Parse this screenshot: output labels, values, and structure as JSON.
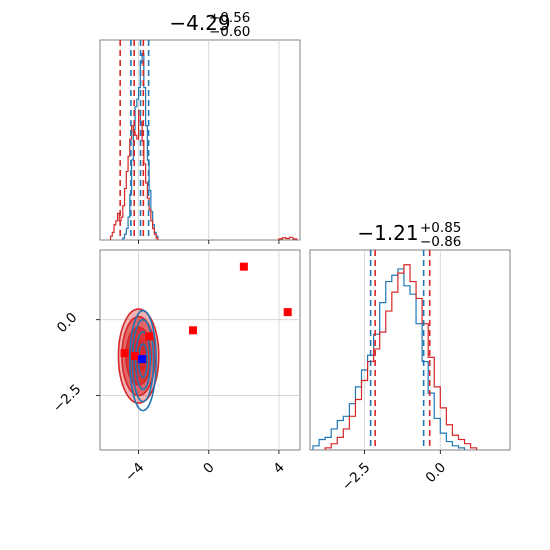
{
  "chart_data": [
    {
      "type": "histogram",
      "panel": "top-left",
      "title": {
        "value": "−4.29",
        "sup": "+0.56",
        "sub": "−0.60"
      },
      "xlim": [
        -6.2,
        5.2
      ],
      "xticks": [
        -4,
        0,
        4
      ],
      "grid": true,
      "quantile_lines": [
        {
          "color": "#d62728",
          "values": [
            -5.05,
            -4.25,
            -3.73
          ]
        },
        {
          "color": "#1f77b4",
          "values": [
            -4.44,
            -3.89,
            -3.43
          ]
        }
      ],
      "series": [
        {
          "color": "#1f77b4",
          "bins": [
            -4.9,
            -4.8,
            -4.7,
            -4.6,
            -4.5,
            -4.4,
            -4.3,
            -4.2,
            -4.1,
            -4.0,
            -3.9,
            -3.8,
            -3.7,
            -3.6,
            -3.5,
            -3.4,
            -3.3,
            -3.2,
            -3.1,
            -3.0,
            -2.9
          ],
          "counts": [
            0.01,
            0.03,
            0.06,
            0.12,
            0.24,
            0.42,
            0.58,
            0.7,
            0.74,
            0.8,
            0.93,
            0.98,
            0.8,
            0.6,
            0.42,
            0.26,
            0.15,
            0.08,
            0.04,
            0.02
          ]
        },
        {
          "color": "#d62728",
          "bins": [
            -5.6,
            -5.5,
            -5.4,
            -5.3,
            -5.2,
            -5.1,
            -5.0,
            -4.9,
            -4.8,
            -4.7,
            -4.6,
            -4.5,
            -4.4,
            -4.3,
            -4.2,
            -4.1,
            -4.0,
            -3.9,
            -3.8,
            -3.7,
            -3.6,
            -3.5,
            -3.4,
            -3.3,
            -3.2,
            -3.1,
            -3.0,
            -2.9
          ],
          "counts": [
            0.02,
            0.04,
            0.08,
            0.1,
            0.14,
            0.1,
            0.12,
            0.18,
            0.27,
            0.36,
            0.44,
            0.53,
            0.6,
            0.57,
            0.55,
            0.53,
            0.68,
            0.62,
            0.52,
            0.4,
            0.3,
            0.22,
            0.16,
            0.1,
            0.06,
            0.03,
            0.01
          ]
        },
        {
          "color": "#d62728",
          "bins": [
            4.0,
            4.2,
            4.4,
            4.6,
            4.8,
            5.0
          ],
          "counts": [
            0.006,
            0.012,
            0.008,
            0.014,
            0.006
          ]
        }
      ]
    },
    {
      "type": "contour",
      "panel": "bottom-left",
      "xlim": [
        -6.2,
        5.2
      ],
      "ylim": [
        -4.3,
        2.3
      ],
      "xticks": [
        -4,
        0,
        4
      ],
      "yticks": [
        0.0,
        -2.5
      ],
      "grid": true,
      "series": [
        {
          "color": "#d62728",
          "center": [
            -4.0,
            -1.2
          ],
          "levels": [
            {
              "rx": 1.15,
              "ry": 1.55,
              "fill_opacity": 0.35
            },
            {
              "rx": 0.95,
              "ry": 1.3,
              "fill_opacity": 0.55
            },
            {
              "rx": 0.72,
              "ry": 0.95,
              "fill_opacity": 0.75
            },
            {
              "rx": 0.45,
              "ry": 0.55,
              "fill_opacity": 0.95
            }
          ]
        },
        {
          "color": "#1f77b4",
          "center": [
            -3.75,
            -1.35
          ],
          "levels": [
            {
              "rx": 0.75,
              "ry": 1.65
            },
            {
              "rx": 0.6,
              "ry": 1.35
            },
            {
              "rx": 0.42,
              "ry": 0.95
            },
            {
              "rx": 0.25,
              "ry": 0.55
            }
          ]
        }
      ],
      "markers": [
        {
          "color": "#ff0000",
          "x": 2.0,
          "y": 1.75
        },
        {
          "color": "#ff0000",
          "x": 4.5,
          "y": 0.25
        },
        {
          "color": "#ff0000",
          "x": -0.9,
          "y": -0.35
        },
        {
          "color": "#ff0000",
          "x": -3.4,
          "y": -0.55
        },
        {
          "color": "#ff0000",
          "x": -4.8,
          "y": -1.1
        },
        {
          "color": "#ff0000",
          "x": -4.2,
          "y": -1.2
        },
        {
          "color": "#0000ff",
          "x": -3.8,
          "y": -1.3
        }
      ]
    },
    {
      "type": "histogram",
      "panel": "bottom-right",
      "title": {
        "value": "−1.21",
        "sup": "+0.85",
        "sub": "−0.86"
      },
      "xlim": [
        -4.3,
        2.3
      ],
      "xticks": [
        -2.5,
        0.0
      ],
      "grid": true,
      "quantile_lines": [
        {
          "color": "#1f77b4",
          "values": [
            -2.3,
            -0.55
          ]
        },
        {
          "color": "#d62728",
          "values": [
            -2.15,
            -0.35
          ]
        }
      ],
      "series": [
        {
          "color": "#1f77b4",
          "bins": [
            -4.2,
            -4.0,
            -3.8,
            -3.6,
            -3.4,
            -3.2,
            -3.0,
            -2.8,
            -2.6,
            -2.4,
            -2.2,
            -2.0,
            -1.8,
            -1.6,
            -1.4,
            -1.2,
            -1.0,
            -0.8,
            -0.6,
            -0.4,
            -0.2,
            0.0,
            0.2,
            0.4,
            0.6,
            0.8
          ],
          "counts": [
            0.02,
            0.05,
            0.06,
            0.1,
            0.14,
            0.16,
            0.22,
            0.3,
            0.38,
            0.45,
            0.55,
            0.7,
            0.8,
            0.83,
            0.86,
            0.78,
            0.74,
            0.6,
            0.42,
            0.27,
            0.15,
            0.08,
            0.04,
            0.02,
            0.01
          ]
        },
        {
          "color": "#d62728",
          "bins": [
            -3.8,
            -3.6,
            -3.4,
            -3.2,
            -3.0,
            -2.8,
            -2.6,
            -2.4,
            -2.2,
            -2.0,
            -1.8,
            -1.6,
            -1.4,
            -1.2,
            -1.0,
            -0.8,
            -0.6,
            -0.4,
            -0.2,
            0.0,
            0.2,
            0.4,
            0.6,
            0.8,
            1.0,
            1.2
          ],
          "counts": [
            0.01,
            0.03,
            0.06,
            0.1,
            0.16,
            0.24,
            0.33,
            0.42,
            0.48,
            0.56,
            0.66,
            0.75,
            0.84,
            0.88,
            0.8,
            0.72,
            0.6,
            0.44,
            0.3,
            0.2,
            0.12,
            0.07,
            0.05,
            0.03,
            0.01
          ]
        }
      ]
    }
  ]
}
